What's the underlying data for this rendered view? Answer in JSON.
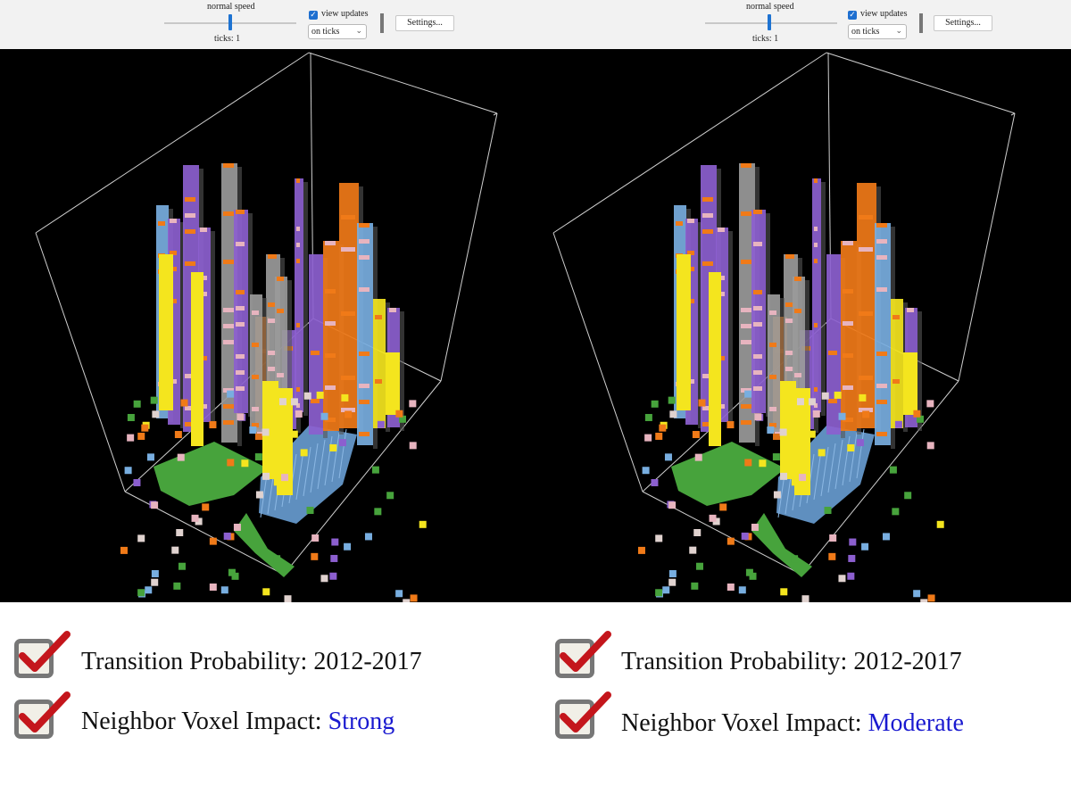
{
  "toolbars": [
    {
      "speed_label": "normal speed",
      "ticks_label": "ticks: 1",
      "view_updates_label": "view updates",
      "view_updates_checked": true,
      "update_mode": "on ticks",
      "settings_label": "Settings..."
    },
    {
      "speed_label": "normal speed",
      "ticks_label": "ticks: 1",
      "view_updates_label": "view updates",
      "view_updates_checked": true,
      "update_mode": "on ticks",
      "settings_label": "Settings..."
    }
  ],
  "legend": {
    "left": {
      "transition_label": "Transition Probability: 2012-2017",
      "neighbor_label": "Neighbor Voxel Impact: ",
      "neighbor_value": "Strong"
    },
    "right": {
      "transition_label": "Transition Probability: 2012-2017",
      "neighbor_label": "Neighbor Voxel Impact: ",
      "neighbor_value": "Moderate"
    }
  },
  "colors": {
    "checkmark": "#c4161c",
    "value_text": "#1a1ad0",
    "voxel_purple": "#8c5fcf",
    "voxel_yellow": "#f4e51e",
    "voxel_orange": "#f07a18",
    "voxel_green": "#47a33c",
    "voxel_gray": "#9a9a9a",
    "voxel_lightblue": "#78aee0",
    "voxel_pink": "#e7b4bf"
  }
}
